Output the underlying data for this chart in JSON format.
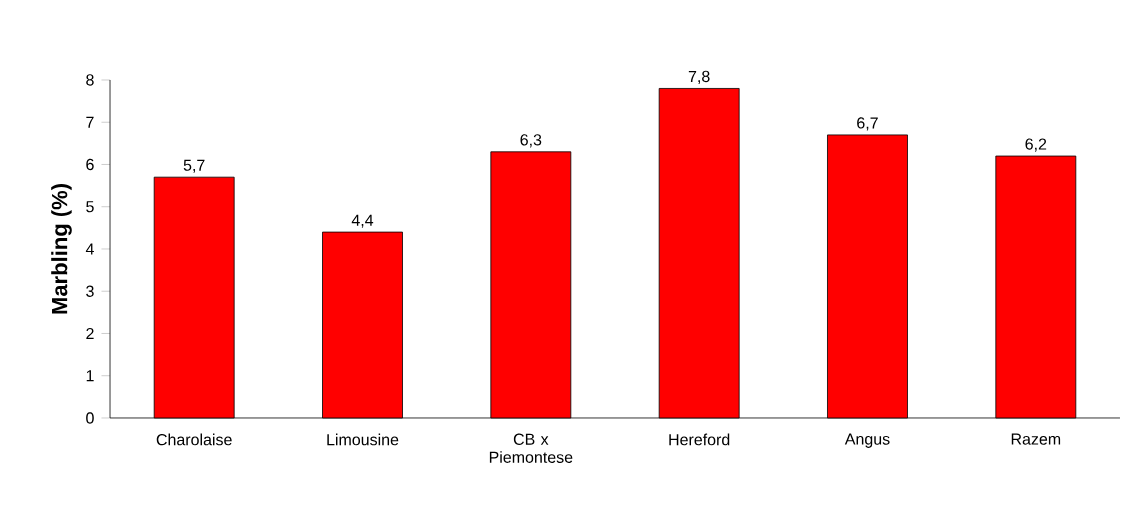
{
  "chart_data": {
    "type": "bar",
    "ylabel": "Marbling (%)",
    "categories": [
      "Charolaise",
      "Limousine",
      "CB x Piemontese",
      "Hereford",
      "Angus",
      "Razem"
    ],
    "values": [
      5.7,
      4.4,
      6.3,
      7.8,
      6.7,
      6.2
    ],
    "value_labels": [
      "5,7",
      "4,4",
      "6,3",
      "7,8",
      "6,7",
      "6,2"
    ],
    "color": "#ff0000",
    "ylim": [
      0,
      8
    ],
    "yticks": [
      0,
      1,
      2,
      3,
      4,
      5,
      6,
      7,
      8
    ],
    "grid": false
  }
}
